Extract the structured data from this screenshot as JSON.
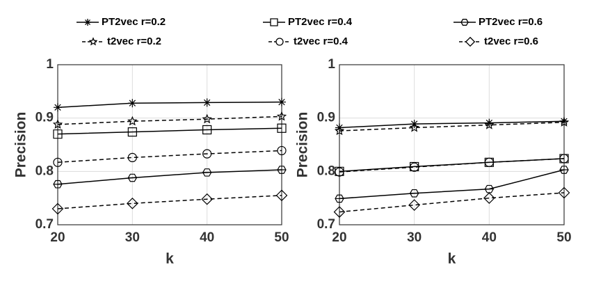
{
  "chart_data": [
    {
      "type": "line",
      "xlabel": "k",
      "ylabel": "Precision",
      "x": [
        20,
        30,
        40,
        50
      ],
      "xlim": [
        20,
        50
      ],
      "xticks": [
        20,
        30,
        40,
        50
      ],
      "ylim": [
        0.7,
        1
      ],
      "yticks": [
        0.7,
        0.8,
        0.9,
        1
      ],
      "grid": true,
      "series": [
        {
          "name": "PT2vec r=0.2",
          "color": "#000000",
          "line_style": "solid",
          "marker": "asterisk",
          "values": [
            0.92,
            0.928,
            0.929,
            0.93
          ]
        },
        {
          "name": "t2vec r=0.2",
          "color": "#000000",
          "line_style": "dashed",
          "marker": "star",
          "values": [
            0.888,
            0.894,
            0.898,
            0.903
          ]
        },
        {
          "name": "PT2vec r=0.4",
          "color": "#000000",
          "line_style": "solid",
          "marker": "square",
          "values": [
            0.87,
            0.874,
            0.878,
            0.881
          ]
        },
        {
          "name": "t2vec r=0.4",
          "color": "#000000",
          "line_style": "dashed",
          "marker": "circle",
          "values": [
            0.817,
            0.826,
            0.833,
            0.839
          ]
        },
        {
          "name": "PT2vec r=0.6",
          "color": "#000000",
          "line_style": "solid",
          "marker": "hexagon",
          "values": [
            0.776,
            0.788,
            0.798,
            0.803
          ]
        },
        {
          "name": "t2vec r=0.6",
          "color": "#000000",
          "line_style": "dashed",
          "marker": "diamond",
          "values": [
            0.73,
            0.74,
            0.748,
            0.755
          ]
        }
      ]
    },
    {
      "type": "line",
      "xlabel": "k",
      "ylabel": "Precision",
      "x": [
        20,
        30,
        40,
        50
      ],
      "xlim": [
        20,
        50
      ],
      "xticks": [
        20,
        30,
        40,
        50
      ],
      "ylim": [
        0.7,
        1
      ],
      "yticks": [
        0.7,
        0.8,
        0.9,
        1
      ],
      "grid": true,
      "series": [
        {
          "color": "#000000",
          "line_style": "solid",
          "marker": "asterisk",
          "values": [
            0.882,
            0.889,
            0.891,
            0.894
          ]
        },
        {
          "color": "#000000",
          "line_style": "dashed",
          "marker": "star",
          "values": [
            0.876,
            0.882,
            0.887,
            0.892
          ]
        },
        {
          "color": "#000000",
          "line_style": "solid",
          "marker": "square",
          "values": [
            0.8,
            0.809,
            0.817,
            0.824
          ]
        },
        {
          "color": "#000000",
          "line_style": "dashed",
          "marker": "circle",
          "values": [
            0.799,
            0.808,
            0.817,
            0.824
          ]
        },
        {
          "color": "#000000",
          "line_style": "solid",
          "marker": "hexagon",
          "values": [
            0.749,
            0.759,
            0.767,
            0.803
          ]
        },
        {
          "color": "#000000",
          "line_style": "dashed",
          "marker": "diamond",
          "values": [
            0.724,
            0.737,
            0.75,
            0.76
          ]
        }
      ]
    }
  ]
}
